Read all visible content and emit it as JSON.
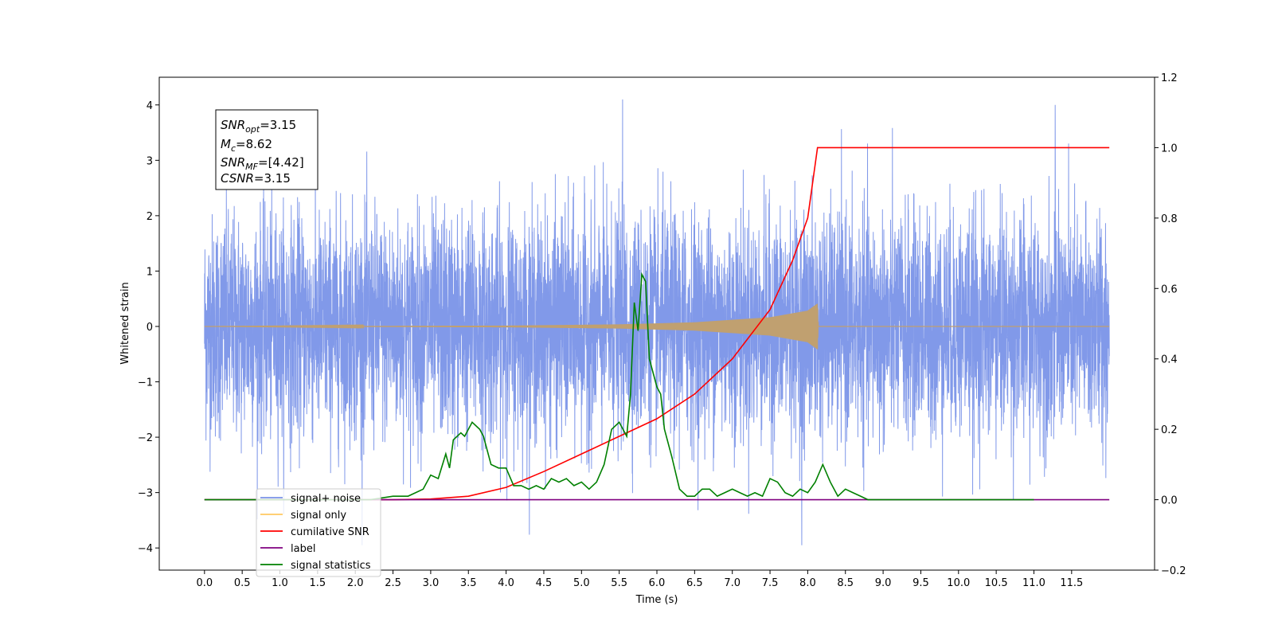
{
  "chart_data": {
    "type": "line",
    "xlabel": "Time (s)",
    "ylabel": "Whitened strain",
    "xlim": [
      -0.6,
      12.6
    ],
    "ylim": [
      -4.4,
      4.5
    ],
    "y2lim": [
      -0.2,
      1.2
    ],
    "x_ticks": [
      0.0,
      0.5,
      1.0,
      1.5,
      2.0,
      2.5,
      3.0,
      3.5,
      4.0,
      4.5,
      5.0,
      5.5,
      6.0,
      6.5,
      7.0,
      7.5,
      8.0,
      8.5,
      9.0,
      9.5,
      10.0,
      10.5,
      11.0,
      11.5
    ],
    "x_tick_labels": [
      "0.0",
      "0.5",
      "1.0",
      "1.5",
      "2.0",
      "2.5",
      "3.0",
      "3.5",
      "4.0",
      "4.5",
      "5.0",
      "5.5",
      "6.0",
      "6.5",
      "7.0",
      "7.5",
      "8.0",
      "8.5",
      "9.0",
      "9.5",
      "10.0",
      "10.5",
      "11.0",
      "11.5"
    ],
    "y_ticks": [
      -4,
      -3,
      -2,
      -1,
      0,
      1,
      2,
      3,
      4
    ],
    "y_tick_labels": [
      "−4",
      "−3",
      "−2",
      "−1",
      "0",
      "1",
      "2",
      "3",
      "4"
    ],
    "y2_ticks": [
      -0.2,
      0.0,
      0.2,
      0.4,
      0.6,
      0.8,
      1.0,
      1.2
    ],
    "y2_tick_labels": [
      "−0.2",
      "0.0",
      "0.2",
      "0.4",
      "0.6",
      "0.8",
      "1.0",
      "1.2"
    ],
    "grid": false,
    "legend_position": "lower-left",
    "annotation": {
      "snr_opt": {
        "base": "SNR",
        "sub": "opt",
        "value": "=3.15"
      },
      "mc": {
        "base": "M",
        "sub": "c",
        "value": "=8.62"
      },
      "snr_mf": {
        "base": "SNR",
        "sub": "MF",
        "value": "=[4.42]"
      },
      "csnr": {
        "base": "CSNR",
        "sub": "",
        "value": "=3.15"
      }
    },
    "series": [
      {
        "name": "signal+ noise",
        "color": "#7a93e8",
        "axis": "left",
        "kind": "noise",
        "x_range": [
          0.0,
          12.0
        ],
        "std": 1.0,
        "max_value": 4.1,
        "min_value": -3.95
      },
      {
        "name": "signal only",
        "color": "#c0a070",
        "axis": "left",
        "kind": "chirp",
        "x_range": [
          0.0,
          12.0
        ],
        "peak_time": 8.13,
        "peak_amplitude": 0.55,
        "envelope": [
          [
            0.0,
            0.0
          ],
          [
            4.0,
            0.02
          ],
          [
            5.5,
            0.05
          ],
          [
            6.5,
            0.1
          ],
          [
            7.5,
            0.22
          ],
          [
            8.0,
            0.38
          ],
          [
            8.13,
            0.55
          ],
          [
            8.14,
            0.0
          ],
          [
            12.0,
            0.0
          ]
        ]
      },
      {
        "name": "cumilative SNR",
        "color": "#ff0000",
        "axis": "right",
        "x": [
          0.0,
          2.5,
          3.0,
          3.5,
          4.0,
          4.5,
          5.0,
          5.5,
          6.0,
          6.5,
          7.0,
          7.5,
          7.8,
          8.0,
          8.13,
          12.0
        ],
        "y": [
          0.0,
          0.0,
          0.002,
          0.01,
          0.035,
          0.08,
          0.13,
          0.18,
          0.23,
          0.3,
          0.4,
          0.54,
          0.68,
          0.8,
          1.0,
          1.0
        ]
      },
      {
        "name": "label",
        "color": "#800080",
        "axis": "right",
        "x": [
          0.0,
          12.0
        ],
        "y": [
          0.0,
          0.0
        ]
      },
      {
        "name": "signal statistics",
        "color": "#008000",
        "axis": "right",
        "x": [
          0.0,
          2.0,
          2.2,
          2.5,
          2.7,
          2.8,
          2.9,
          3.0,
          3.1,
          3.2,
          3.25,
          3.3,
          3.4,
          3.45,
          3.55,
          3.65,
          3.7,
          3.8,
          3.9,
          4.0,
          4.1,
          4.2,
          4.3,
          4.4,
          4.5,
          4.6,
          4.7,
          4.8,
          4.9,
          5.0,
          5.1,
          5.2,
          5.3,
          5.4,
          5.5,
          5.55,
          5.6,
          5.65,
          5.7,
          5.75,
          5.8,
          5.85,
          5.9,
          6.0,
          6.05,
          6.1,
          6.2,
          6.3,
          6.4,
          6.5,
          6.6,
          6.7,
          6.8,
          6.9,
          7.0,
          7.1,
          7.2,
          7.3,
          7.4,
          7.5,
          7.6,
          7.7,
          7.8,
          7.9,
          8.0,
          8.1,
          8.2,
          8.3,
          8.4,
          8.5,
          8.6,
          8.7,
          8.8,
          8.9,
          11.0
        ],
        "y": [
          0.0,
          0.0,
          0.0,
          0.01,
          0.01,
          0.02,
          0.03,
          0.07,
          0.06,
          0.13,
          0.09,
          0.17,
          0.19,
          0.18,
          0.22,
          0.2,
          0.18,
          0.1,
          0.09,
          0.09,
          0.04,
          0.04,
          0.03,
          0.04,
          0.03,
          0.06,
          0.05,
          0.06,
          0.04,
          0.05,
          0.03,
          0.05,
          0.1,
          0.2,
          0.22,
          0.2,
          0.18,
          0.3,
          0.56,
          0.48,
          0.64,
          0.62,
          0.4,
          0.32,
          0.3,
          0.2,
          0.12,
          0.03,
          0.01,
          0.01,
          0.03,
          0.03,
          0.01,
          0.02,
          0.03,
          0.02,
          0.01,
          0.02,
          0.01,
          0.06,
          0.05,
          0.02,
          0.01,
          0.03,
          0.02,
          0.05,
          0.1,
          0.05,
          0.01,
          0.03,
          0.02,
          0.01,
          0.0,
          0.0,
          0.0
        ]
      }
    ],
    "legend": [
      {
        "label": "signal+ noise",
        "color": "#7a93e8"
      },
      {
        "label": "signal only",
        "color": "#ffc860"
      },
      {
        "label": "cumilative SNR",
        "color": "#ff0000"
      },
      {
        "label": "label",
        "color": "#800080"
      },
      {
        "label": "signal statistics",
        "color": "#008000"
      }
    ]
  }
}
